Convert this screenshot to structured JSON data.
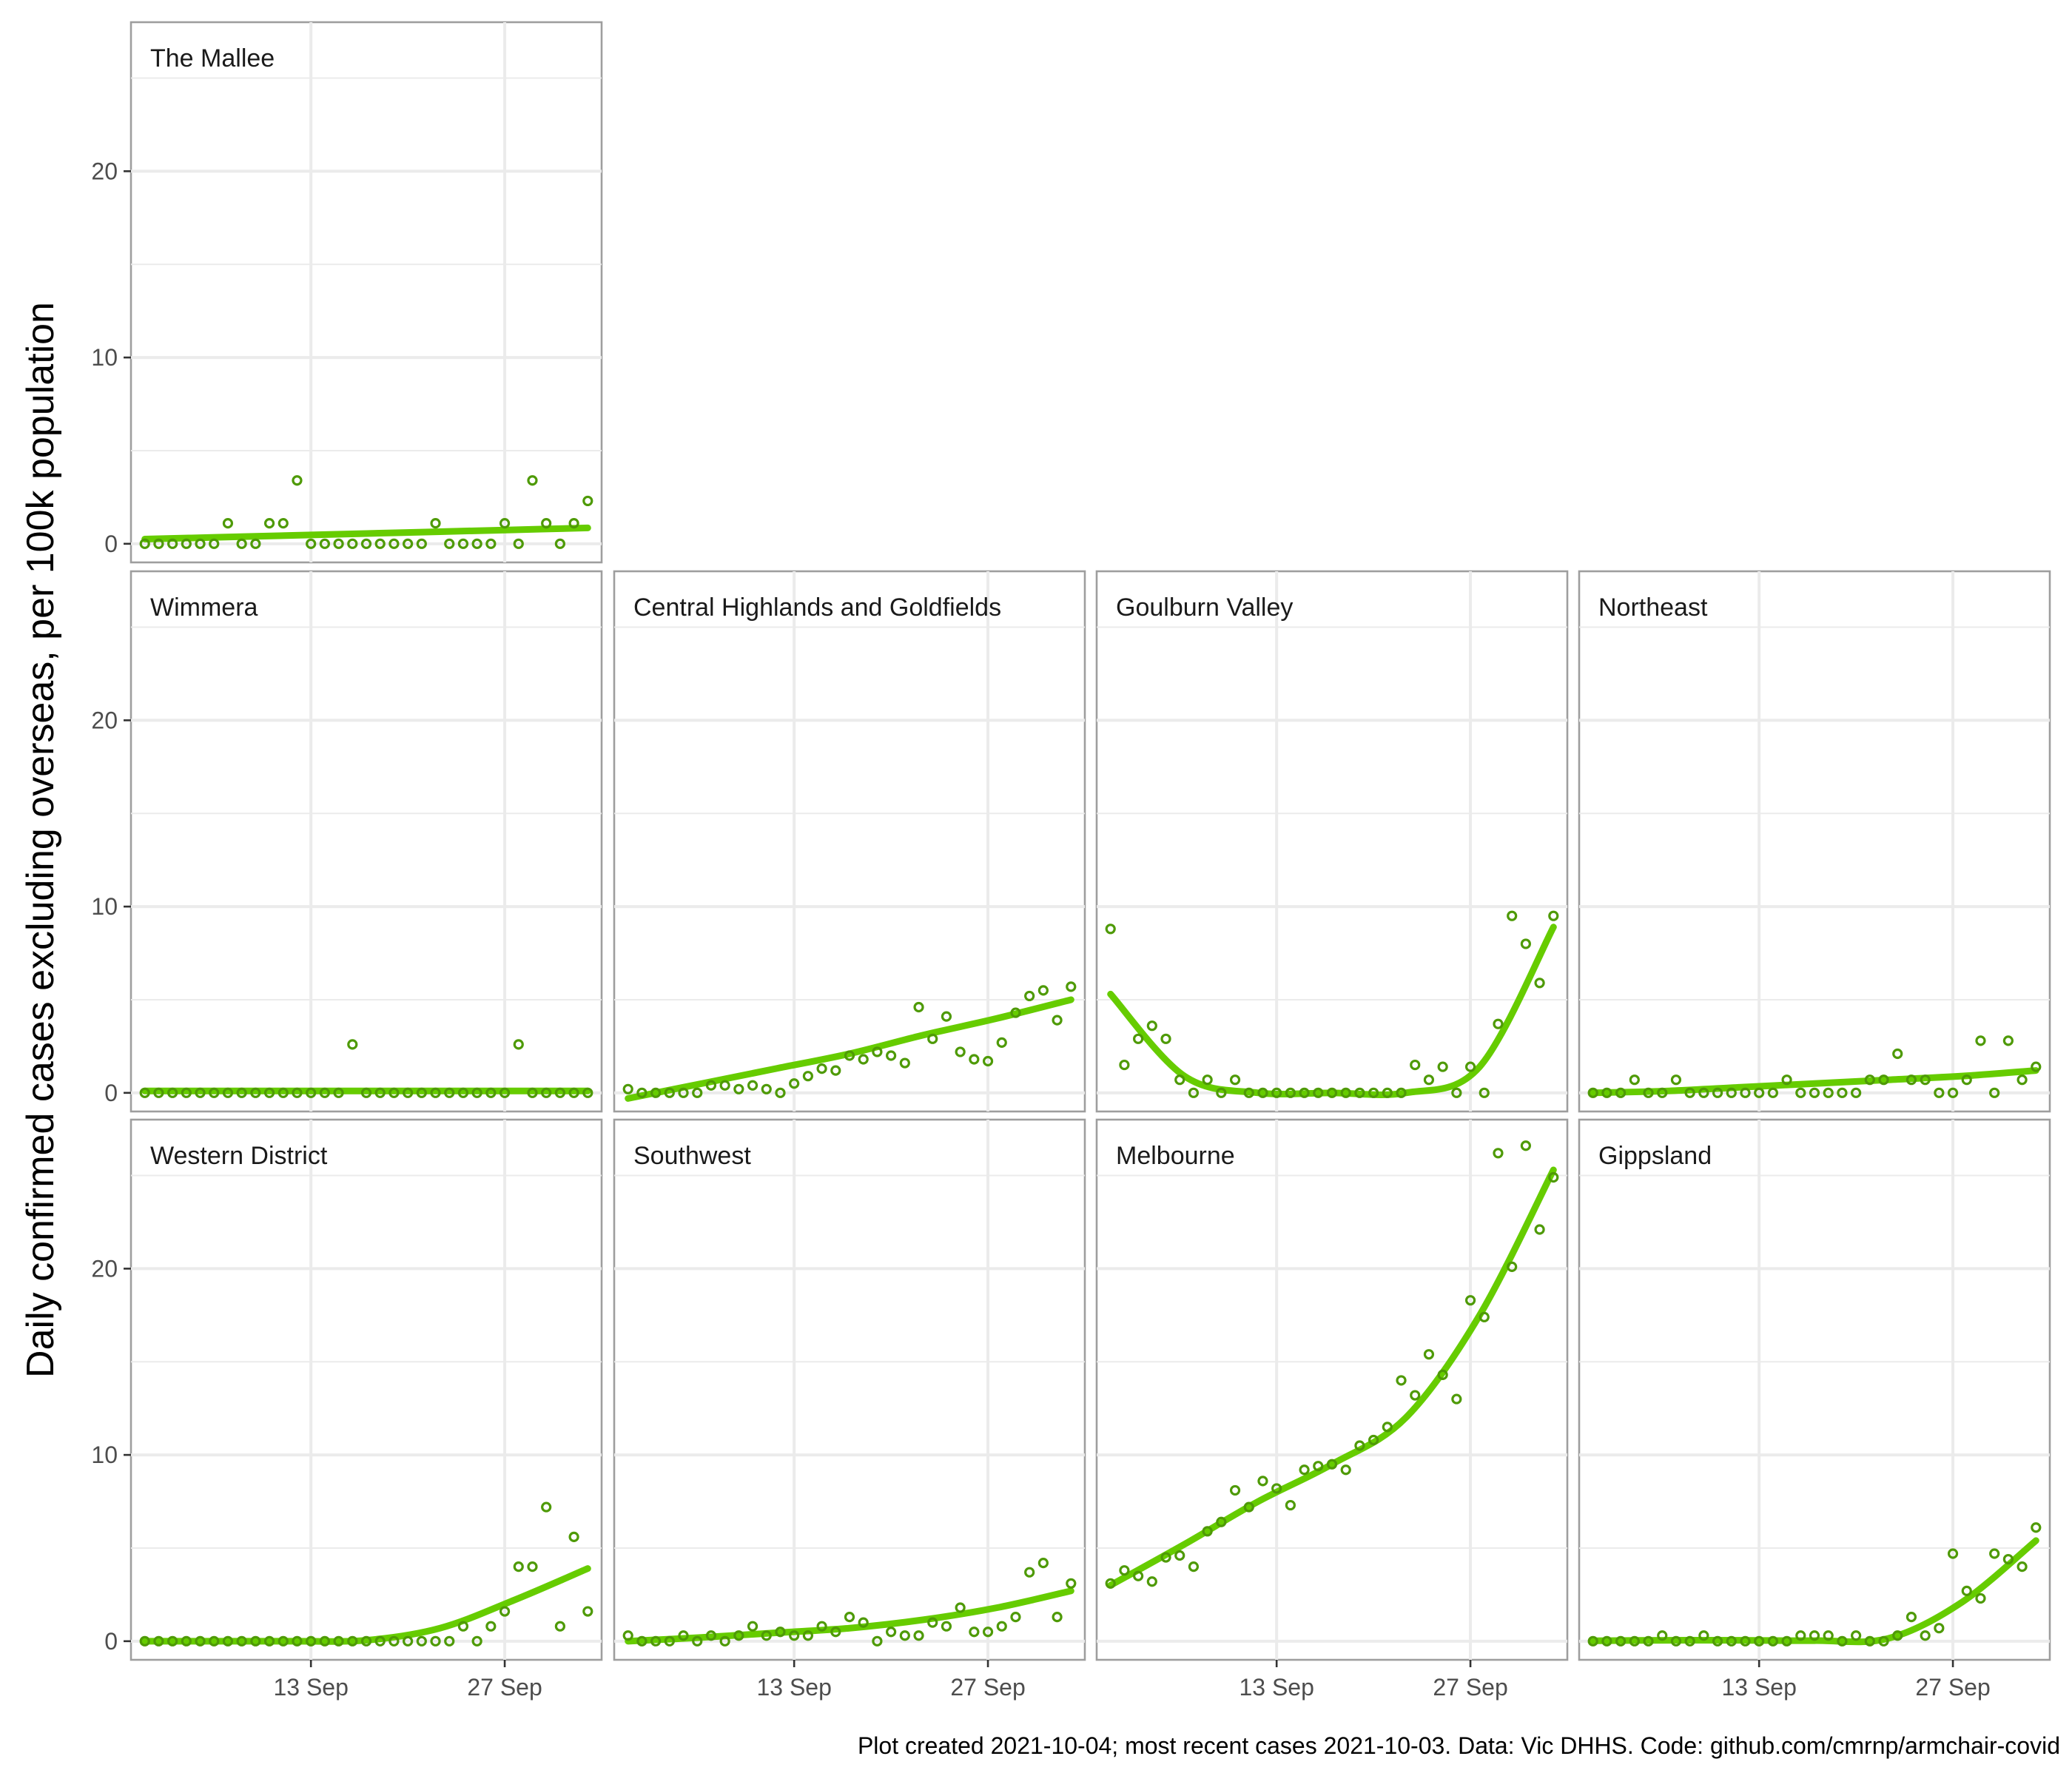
{
  "chart_data": {
    "type": "scatter",
    "title": "",
    "ylabel": "Daily confirmed cases excluding overseas, per 100k population",
    "xlabel": "",
    "caption": "Plot created 2021-10-04; most recent cases 2021-10-03. Data: Vic DHHS. Code: github.com/cmrnp/armchair-covid",
    "x_start_date": "2021-09-01",
    "x_end_date": "2021-10-03",
    "xlim": [
      "2021-08-31",
      "2021-10-04"
    ],
    "ylim": [
      -1,
      28
    ],
    "x_ticks": [
      {
        "date": "2021-09-13",
        "label": "13 Sep"
      },
      {
        "date": "2021-09-27",
        "label": "27 Sep"
      }
    ],
    "y_ticks": [
      0,
      10,
      20
    ],
    "grid": true,
    "point_color": "#4e9a06",
    "trend_color": "#66cc00",
    "panels": [
      {
        "name": "The Mallee",
        "values": [
          0,
          0,
          0,
          0,
          0,
          0,
          1.1,
          0,
          0,
          1.1,
          1.1,
          3.4,
          0,
          0,
          0,
          0,
          0,
          0,
          0,
          0,
          0,
          1.1,
          0,
          0,
          0,
          0,
          1.1,
          0,
          3.4,
          1.1,
          0,
          1.1,
          2.3
        ],
        "trend": [
          0.25,
          0.35,
          0.45,
          0.55,
          0.65,
          0.75,
          0.85
        ]
      },
      {
        "name": "Wimmera",
        "values": [
          0,
          0,
          0,
          0,
          0,
          0,
          0,
          0,
          0,
          0,
          0,
          0,
          0,
          0,
          0,
          2.6,
          0,
          0,
          0,
          0,
          0,
          0,
          0,
          0,
          0,
          0,
          0,
          2.6,
          0,
          0,
          0,
          0,
          0
        ],
        "trend": [
          0.1,
          0.1,
          0.1,
          0.1,
          0.1,
          0.1,
          0.1
        ]
      },
      {
        "name": "Central Highlands and Goldfields",
        "values": [
          0.2,
          0,
          0,
          0,
          0,
          0,
          0.4,
          0.4,
          0.2,
          0.4,
          0.2,
          0,
          0.5,
          0.9,
          1.3,
          1.2,
          2,
          1.8,
          2.2,
          2,
          1.6,
          4.6,
          2.9,
          4.1,
          2.2,
          1.8,
          1.7,
          2.7,
          4.3,
          5.2,
          5.5,
          3.9,
          5.7
        ],
        "trend": [
          -0.3,
          0.5,
          1.3,
          2.1,
          3.1,
          4.0,
          5.0
        ]
      },
      {
        "name": "Goulburn Valley",
        "values": [
          8.8,
          1.5,
          2.9,
          3.6,
          2.9,
          0.7,
          0,
          0.7,
          0,
          0.7,
          0,
          0,
          0,
          0,
          0,
          0,
          0,
          0,
          0,
          0,
          0,
          0,
          1.5,
          0.7,
          1.4,
          0,
          1.4,
          0,
          3.7,
          9.5,
          8,
          5.9,
          9.5
        ],
        "trend": [
          5.3,
          0.9,
          0,
          0,
          0,
          1.4,
          8.9
        ]
      },
      {
        "name": "Northeast",
        "values": [
          0,
          0,
          0,
          0.7,
          0,
          0,
          0.7,
          0,
          0,
          0,
          0,
          0,
          0,
          0,
          0.7,
          0,
          0,
          0,
          0,
          0,
          0.7,
          0.7,
          2.1,
          0.7,
          0.7,
          0,
          0,
          0.7,
          2.8,
          0,
          2.8,
          0.7,
          1.4
        ],
        "trend": [
          0,
          0.1,
          0.3,
          0.5,
          0.7,
          0.9,
          1.2
        ]
      },
      {
        "name": "Western District",
        "values": [
          0,
          0,
          0,
          0,
          0,
          0,
          0,
          0,
          0,
          0,
          0,
          0,
          0,
          0,
          0,
          0,
          0,
          0,
          0,
          0,
          0,
          0,
          0,
          0.8,
          0,
          0.8,
          1.6,
          4,
          4,
          7.2,
          0.8,
          5.6,
          1.6
        ],
        "trend": [
          0,
          0,
          0,
          0.05,
          0.7,
          2.2,
          3.9
        ]
      },
      {
        "name": "Southwest",
        "values": [
          0.3,
          0,
          0,
          0,
          0.3,
          0,
          0.3,
          0,
          0.3,
          0.8,
          0.3,
          0.5,
          0.3,
          0.3,
          0.8,
          0.5,
          1.3,
          1,
          0,
          0.5,
          0.3,
          0.3,
          1,
          0.8,
          1.8,
          0.5,
          0.5,
          0.8,
          1.3,
          3.7,
          4.2,
          1.3,
          3.1
        ],
        "trend": [
          0,
          0.2,
          0.45,
          0.7,
          1.15,
          1.8,
          2.7
        ]
      },
      {
        "name": "Melbourne",
        "values": [
          3.1,
          3.8,
          3.5,
          3.2,
          4.5,
          4.6,
          4,
          5.9,
          6.4,
          8.1,
          7.2,
          8.6,
          8.2,
          7.3,
          9.2,
          9.4,
          9.5,
          9.2,
          10.5,
          10.8,
          11.5,
          14,
          13.2,
          15.4,
          14.3,
          13,
          18.3,
          17.4,
          26.2,
          20.1,
          26.6,
          22.1,
          24.9
        ],
        "trend": [
          3.0,
          5.2,
          7.5,
          9.5,
          12.0,
          17.5,
          25.3
        ]
      },
      {
        "name": "Gippsland",
        "values": [
          0,
          0,
          0,
          0,
          0,
          0.3,
          0,
          0,
          0.3,
          0,
          0,
          0,
          0,
          0,
          0,
          0.3,
          0.3,
          0.3,
          0,
          0.3,
          0,
          0,
          0.3,
          1.3,
          0.3,
          0.7,
          4.7,
          2.7,
          2.3,
          4.7,
          4.4,
          4,
          6.1
        ],
        "trend": [
          0.02,
          0.05,
          0.05,
          0.03,
          0.15,
          2.1,
          5.4
        ]
      }
    ]
  }
}
